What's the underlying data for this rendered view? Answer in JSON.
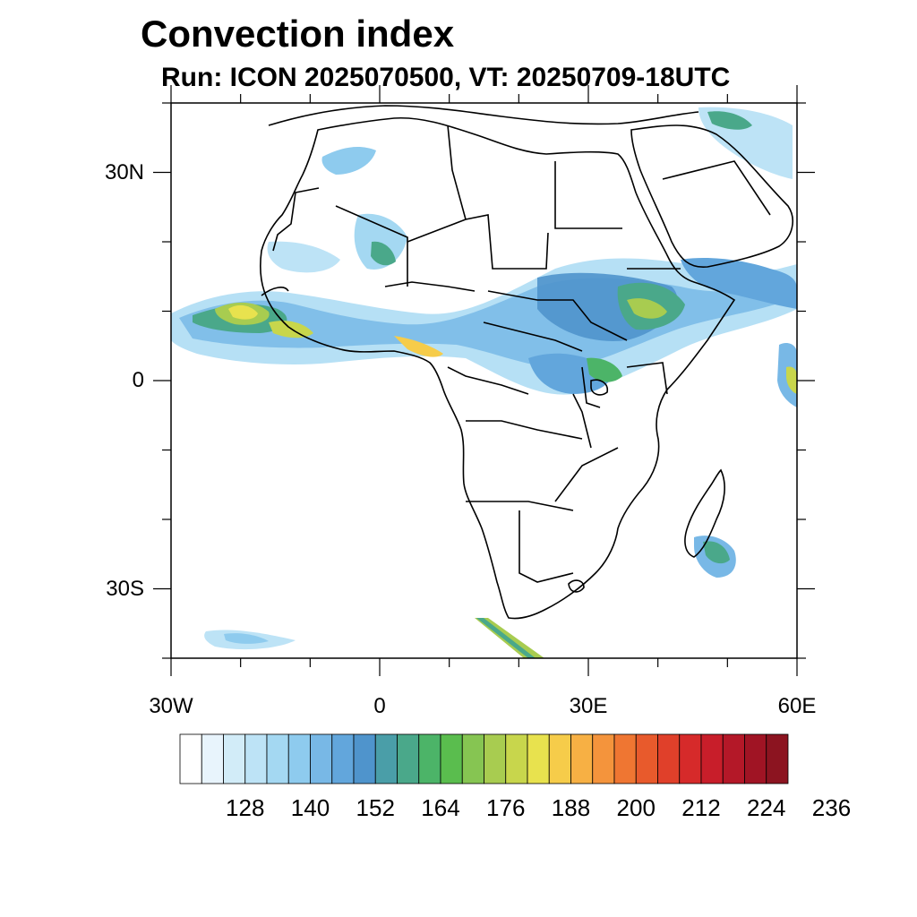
{
  "title": "Convection index",
  "subtitle": "Run: ICON 2025070500,  VT: 20250709-18UTC",
  "map": {
    "lon_range": [
      -30,
      60
    ],
    "lat_range": [
      -40,
      40
    ],
    "lat_ticks": [
      {
        "value": 30,
        "label": "30N"
      },
      {
        "value": 0,
        "label": "0"
      },
      {
        "value": -30,
        "label": "30S"
      }
    ],
    "lon_ticks": [
      {
        "value": -30,
        "label": "30W"
      },
      {
        "value": 0,
        "label": "0"
      },
      {
        "value": 30,
        "label": "30E"
      },
      {
        "value": 60,
        "label": "60E"
      }
    ]
  },
  "colorbar": {
    "colors": [
      "#ffffff",
      "#e8f4fc",
      "#d2ecf8",
      "#bde3f6",
      "#a4d8f2",
      "#8ecbee",
      "#78b8e6",
      "#62a6dc",
      "#4f94cc",
      "#4a9ea8",
      "#4aa88a",
      "#4cb468",
      "#5abd4e",
      "#86c552",
      "#a8cc50",
      "#c8d64c",
      "#e8e24e",
      "#f6cc4a",
      "#f7b044",
      "#f4943c",
      "#ef7632",
      "#e85a2c",
      "#e0402a",
      "#d62a2a",
      "#c81e2a",
      "#b41828",
      "#a01424",
      "#8c1420"
    ],
    "labels": [
      "128",
      "140",
      "152",
      "164",
      "176",
      "188",
      "200",
      "212",
      "224",
      "236"
    ]
  }
}
